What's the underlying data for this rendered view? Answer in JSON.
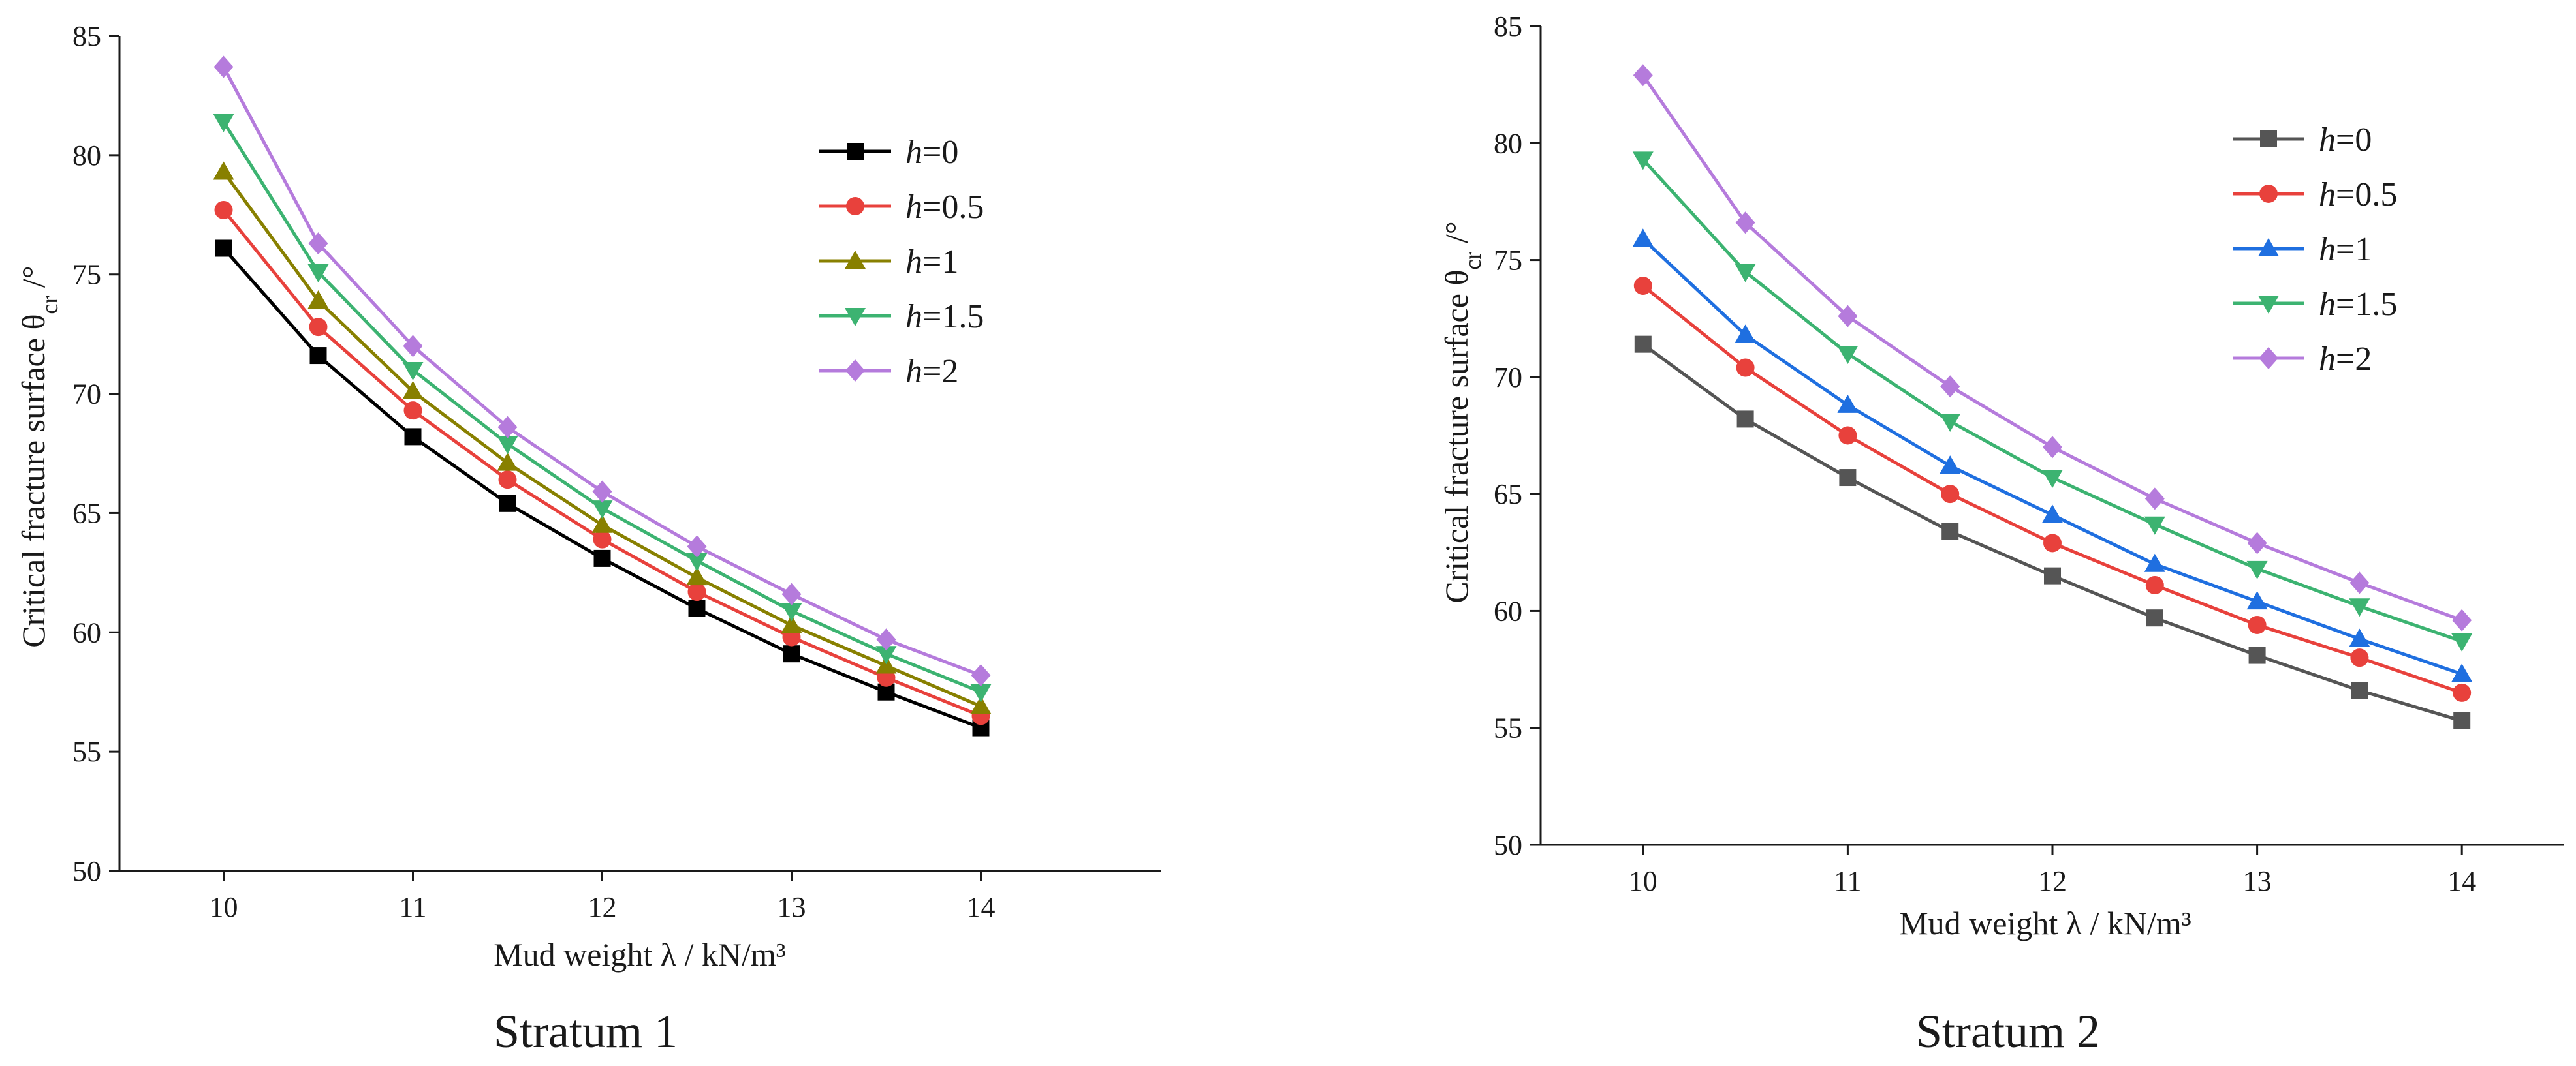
{
  "chart_data": [
    {
      "type": "line",
      "title": "Stratum 1",
      "xlabel": "Mud weight λ / kN/m³",
      "ylabel": "Critical fracture surface θcr /°",
      "ylabel_main": "Critical fracture surface θ",
      "ylabel_sub": "cr",
      "ylabel_tail": " /°",
      "xlim": [
        9.45,
        14.95
      ],
      "ylim": [
        50,
        85
      ],
      "xticks": [
        10,
        11,
        12,
        13,
        14
      ],
      "yticks": [
        50,
        55,
        60,
        65,
        70,
        75,
        80,
        85
      ],
      "grid": false,
      "legend_position": "top-right",
      "x": [
        10,
        10.5,
        11,
        11.5,
        12,
        12.5,
        13,
        13.5,
        14
      ],
      "series": [
        {
          "name": "h=0",
          "var": "h",
          "val": "=0",
          "color": "#000000",
          "marker": "square",
          "values": [
            76.1,
            71.6,
            68.2,
            65.4,
            63.1,
            61.0,
            59.1,
            57.5,
            56.0
          ]
        },
        {
          "name": "h=0.5",
          "var": "h",
          "val": "=0.5",
          "color": "#e8413c",
          "marker": "circle",
          "values": [
            77.7,
            72.8,
            69.3,
            66.4,
            63.9,
            61.7,
            59.8,
            58.1,
            56.5
          ]
        },
        {
          "name": "h=1",
          "var": "h",
          "val": "=1",
          "color": "#888000",
          "marker": "triangle-up",
          "values": [
            79.3,
            73.9,
            70.1,
            67.1,
            64.5,
            62.3,
            60.3,
            58.6,
            56.9
          ]
        },
        {
          "name": "h=1.5",
          "var": "h",
          "val": "=1.5",
          "color": "#3cb371",
          "marker": "triangle-down",
          "values": [
            81.4,
            75.1,
            71.0,
            67.9,
            65.2,
            63.0,
            60.9,
            59.1,
            57.5
          ]
        },
        {
          "name": "h=2",
          "var": "h",
          "val": "=2",
          "color": "#b57bdc",
          "marker": "diamond",
          "values": [
            83.7,
            76.3,
            72.0,
            68.6,
            65.9,
            63.6,
            61.6,
            59.7,
            58.2
          ]
        }
      ]
    },
    {
      "type": "line",
      "title": "Stratum 2",
      "xlabel": "Mud weight λ / kN/m³",
      "ylabel": "Critical fracture surface θcr /°",
      "ylabel_main": "Critical fracture surface θ",
      "ylabel_sub": "cr",
      "ylabel_tail": " /°",
      "xlim": [
        9.5,
        14.5
      ],
      "ylim": [
        50,
        85
      ],
      "xticks": [
        10,
        11,
        12,
        13,
        14
      ],
      "yticks": [
        50,
        55,
        60,
        65,
        70,
        75,
        80,
        85
      ],
      "grid": false,
      "legend_position": "top-right",
      "x": [
        10,
        10.5,
        11,
        11.5,
        12,
        12.5,
        13,
        13.5,
        14
      ],
      "series": [
        {
          "name": "h=0",
          "var": "h",
          "val": "=0",
          "color": "#555555",
          "marker": "square",
          "values": [
            71.4,
            68.2,
            65.7,
            63.4,
            61.5,
            59.7,
            58.1,
            56.6,
            55.3
          ]
        },
        {
          "name": "h=0.5",
          "var": "h",
          "val": "=0.5",
          "color": "#e8413c",
          "marker": "circle",
          "values": [
            73.9,
            70.4,
            67.5,
            65.0,
            62.9,
            61.1,
            59.4,
            58.0,
            56.5
          ]
        },
        {
          "name": "h=1",
          "var": "h",
          "val": "=1",
          "color": "#1f6fe0",
          "marker": "triangle-up",
          "values": [
            75.9,
            71.8,
            68.8,
            66.2,
            64.1,
            62.0,
            60.4,
            58.8,
            57.3
          ]
        },
        {
          "name": "h=1.5",
          "var": "h",
          "val": "=1.5",
          "color": "#3cb371",
          "marker": "triangle-down",
          "values": [
            79.3,
            74.5,
            71.0,
            68.1,
            65.7,
            63.7,
            61.8,
            60.2,
            58.7
          ]
        },
        {
          "name": "h=2",
          "var": "h",
          "val": "=2",
          "color": "#b57bdc",
          "marker": "diamond",
          "values": [
            82.9,
            76.6,
            72.6,
            69.6,
            67.0,
            64.8,
            62.9,
            61.2,
            59.6
          ]
        }
      ]
    }
  ]
}
